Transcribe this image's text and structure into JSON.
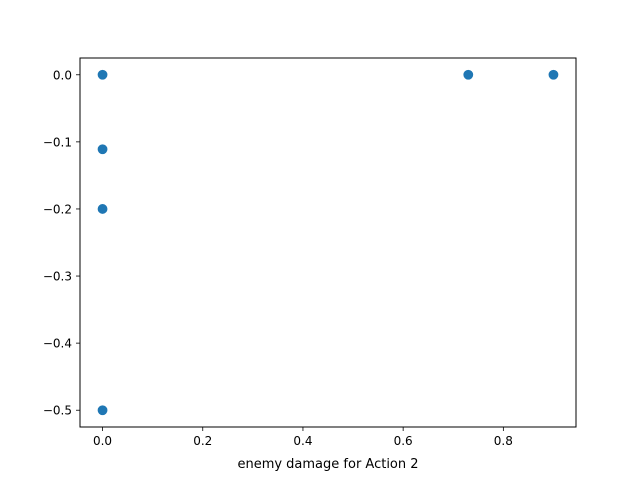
{
  "chart_data": {
    "type": "scatter",
    "title": "",
    "xlabel": "enemy damage for Action 2",
    "ylabel": "",
    "xlim": [
      -0.045,
      0.945
    ],
    "ylim": [
      -0.525,
      0.025
    ],
    "grid": false,
    "legend": "none",
    "marker_color": "#1f77b4",
    "x_ticks": [
      {
        "value": 0.0,
        "label": "0.0"
      },
      {
        "value": 0.2,
        "label": "0.2"
      },
      {
        "value": 0.4,
        "label": "0.4"
      },
      {
        "value": 0.6,
        "label": "0.6"
      },
      {
        "value": 0.8,
        "label": "0.8"
      }
    ],
    "y_ticks": [
      {
        "value": 0.0,
        "label": "0.0"
      },
      {
        "value": -0.1,
        "label": "−0.1"
      },
      {
        "value": -0.2,
        "label": "−0.2"
      },
      {
        "value": -0.3,
        "label": "−0.3"
      },
      {
        "value": -0.4,
        "label": "−0.4"
      },
      {
        "value": -0.5,
        "label": "−0.5"
      }
    ],
    "series": [
      {
        "points": [
          {
            "x": 0.0,
            "y": 0.0
          },
          {
            "x": 0.0,
            "y": -0.111
          },
          {
            "x": 0.0,
            "y": -0.2
          },
          {
            "x": 0.0,
            "y": -0.5
          },
          {
            "x": 0.73,
            "y": 0.0
          },
          {
            "x": 0.9,
            "y": 0.0
          }
        ]
      }
    ]
  }
}
